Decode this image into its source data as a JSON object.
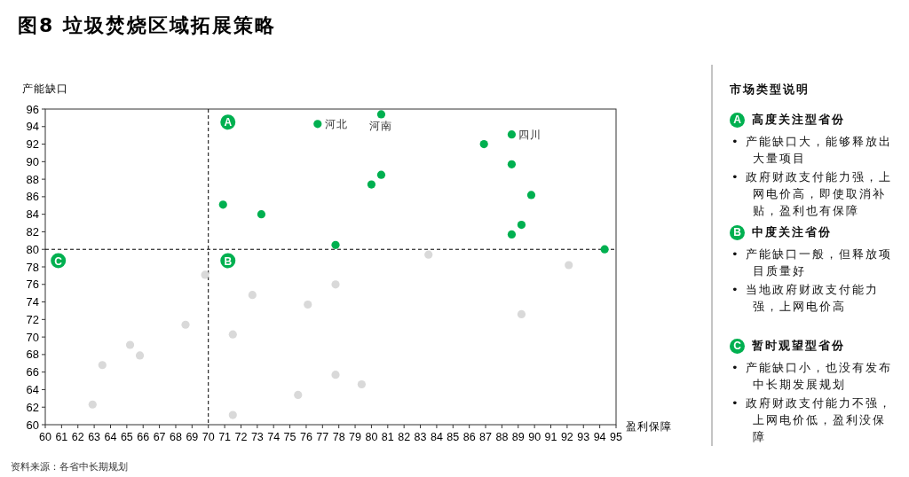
{
  "chart_data": [
    {
      "type": "scatter",
      "title": "图8 垃圾焚烧区域拓展策略",
      "xlabel": "盈利保障",
      "ylabel": "产能缺口",
      "xlim": [
        60,
        95
      ],
      "ylim": [
        60,
        96
      ],
      "xticks": [
        60,
        61,
        62,
        63,
        64,
        65,
        66,
        67,
        68,
        69,
        70,
        71,
        72,
        73,
        74,
        75,
        76,
        77,
        78,
        79,
        80,
        81,
        82,
        83,
        84,
        85,
        86,
        87,
        88,
        89,
        90,
        91,
        92,
        93,
        94,
        95
      ],
      "yticks": [
        60,
        62,
        64,
        66,
        68,
        70,
        72,
        74,
        76,
        78,
        80,
        82,
        84,
        86,
        88,
        90,
        92,
        94,
        96
      ],
      "grid": false,
      "marker": "circle",
      "series": [
        {
          "color": "#00b050",
          "x": [
            70.9,
            73.25,
            77.8,
            76.7,
            80.6,
            88.6,
            86.9,
            88.6,
            80.6,
            80.0,
            89.8,
            89.2,
            88.6,
            94.3
          ],
          "values": [
            85.1,
            84.0,
            80.5,
            94.3,
            95.4,
            93.1,
            92.0,
            89.7,
            88.5,
            87.4,
            86.2,
            82.8,
            81.7,
            80.0
          ]
        },
        {
          "color": "#d9d9d9",
          "x": [
            69.8,
            72.7,
            76.1,
            77.8,
            71.5,
            68.6,
            65.2,
            65.8,
            63.5,
            62.9,
            71.5,
            75.5,
            77.8,
            83.5,
            92.1,
            89.2,
            79.4
          ],
          "values": [
            77.1,
            74.8,
            73.7,
            76.0,
            70.3,
            71.4,
            69.1,
            67.9,
            66.8,
            62.3,
            61.1,
            63.4,
            65.7,
            79.4,
            78.2,
            72.6,
            64.6
          ]
        }
      ],
      "ref_lines": [
        {
          "axis": "x",
          "value": 70,
          "line_style": "dashed",
          "color": "#000000"
        },
        {
          "axis": "y",
          "value": 80,
          "line_style": "dashed",
          "color": "#000000"
        }
      ],
      "annotations": [
        {
          "text": "河北",
          "x": 76.7,
          "y": 94.3
        },
        {
          "text": "河南",
          "x": 80.6,
          "y": 95.4
        },
        {
          "text": "四川",
          "x": 88.6,
          "y": 93.1
        },
        {
          "text": "A",
          "x": 71.2,
          "y": 94.5
        },
        {
          "text": "B",
          "x": 71.2,
          "y": 78.7
        },
        {
          "text": "C",
          "x": 60.8,
          "y": 78.7
        },
        "资料来源：各省中长期规划"
      ]
    },
    {
      "type": "other",
      "title": "市场类型说明",
      "annotations": [
        "A",
        "高度关注型省份",
        "• 产能缺口大，能够释放出大量项目",
        "• 政府财政支付能力强，上网电价高，即使取消补贴，盈利也有保障",
        "B",
        "中度关注省份",
        "• 产能缺口一般，但释放项目质量好",
        "• 当地政府财政支付能力强，上网电价高",
        "C",
        "暂时观望型省份",
        "• 产能缺口小，也没有发布中长期发展规划",
        "• 政府财政支付能力不强，上网电价低，盈利没保障"
      ]
    }
  ]
}
